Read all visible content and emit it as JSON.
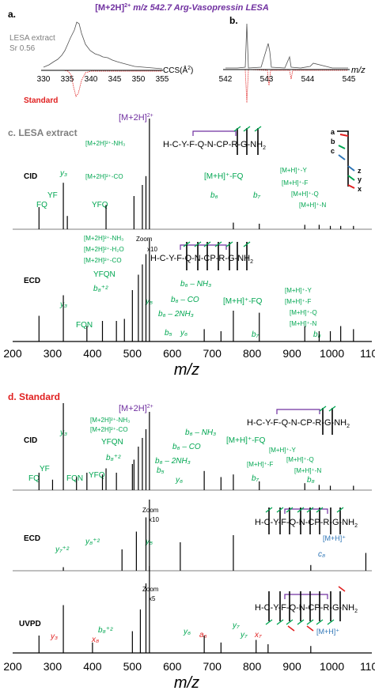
{
  "figure": {
    "title": "[M+2H]",
    "title_charge": "2+",
    "title_rest": " m/z 542.7 Arg-Vasopressin LESA"
  },
  "colors": {
    "purple": "#7030a0",
    "green": "#00a651",
    "red": "#e02020",
    "blue": "#2e75b6",
    "gray": "#808080",
    "black": "#000000"
  },
  "panel_a": {
    "label": "a.",
    "extract_label_1": "LESA extract",
    "extract_label_2": "Sr 0.56",
    "standard_label": "Standard",
    "axis_unit": "CCS(Å",
    "axis_unit_sup": "2",
    "axis_unit_close": ")",
    "ticks": [
      "330",
      "335",
      "340",
      "345",
      "350",
      "355"
    ]
  },
  "panel_b": {
    "label": "b.",
    "axis_unit": "m/z",
    "ticks": [
      "542",
      "543",
      "544",
      "545"
    ]
  },
  "panel_c": {
    "label": "c. LESA extract",
    "precursor": "[M+2H]",
    "precursor_charge": "2+",
    "cid_label": "CID",
    "ecd_label": "ECD",
    "zoom_1": "Zoom",
    "zoom_2": "x10",
    "sequence_top": "H-C-Y-F-Q-N-C",
    "seq_p": "P",
    "seq_r": "R",
    "seq_end": "-G-NH",
    "seq_sub": "2",
    "ion_legend": [
      "a",
      "b",
      "c",
      "z",
      "y",
      "x"
    ],
    "cid_ions": {
      "nh3": "[M+2H]²⁺-NH₃",
      "co": "[M+2H]²⁺-CO",
      "y3": "y₃",
      "fq": "FQ",
      "yf": "YF",
      "yfq": "YFQ",
      "mfq": "[M+H]⁺-FQ",
      "my": "[M+H]⁺-Y",
      "mf": "[M+H]⁺-F",
      "mq": "[M+H]⁺-Q",
      "mn": "[M+H]⁺-N",
      "b6": "b₆",
      "b7": "b₇"
    },
    "ecd_ions": {
      "nh3": "[M+2H]²⁺-NH₃",
      "h2o": "[M+2H]²⁺-H₂O",
      "co": "[M+2H]²⁺-CO",
      "yfqn": "YFQN",
      "b8": "b₈⁺²",
      "y3": "y₃",
      "fqn": "FQN",
      "y5": "y₅",
      "b6nh3": "b₆ – NH₃",
      "b6co": "b₆ – CO",
      "b62nh3": "b₆ – 2NH₃",
      "mfq": "[M+H]⁺-FQ",
      "my": "[M+H]⁺-Y",
      "mf": "[M+H]⁺-F",
      "mq": "[M+H]⁺-Q",
      "mn": "[M+H]⁺-N",
      "b5": "b₅",
      "y6": "y₆",
      "b7": "b₇",
      "b8b": "b₈"
    },
    "xlabel": "m/z"
  },
  "panel_d": {
    "label": "d. Standard",
    "precursor": "[M+2H]",
    "precursor_charge": "2+",
    "cid_label": "CID",
    "ecd_label": "ECD",
    "uvpd_label": "UVPD",
    "zoom": "Zoom",
    "zoom_x10": "x10",
    "zoom_x5": "x5",
    "sequence": "H-C-Y-F-Q-N-C",
    "seq_p": "P",
    "seq_r": "R",
    "seq_end": "G-NH",
    "seq_sub": "2",
    "cid_ions": {
      "y3": "y₃",
      "nh3": "[M+2H]²⁺-NH₃",
      "co": "[M+2H]²⁺-CO",
      "yfqn": "YFQN",
      "b8": "b₈⁺²",
      "fq": "FQ",
      "yf": "YF",
      "fqn": "FQN",
      "yfq": "YFQ",
      "b6nh3": "b₆ – NH₃",
      "b6co": "b₆ – CO",
      "b62nh3": "b₆ – 2NH₃",
      "b5": "b₅",
      "y6": "y₆",
      "mfq": "[M+H]⁺-FQ",
      "my": "[M+H]⁺-Y",
      "mf": "[M+H]⁺-F",
      "mq": "[M+H]⁺-Q",
      "mn": "[M+H]⁺-N",
      "b7": "b₇",
      "b8b": "b₈"
    },
    "ecd_ions": {
      "y7": "y₇⁺²",
      "y8": "y₈⁺²",
      "y5": "y₅",
      "c8": "c₈",
      "mh": "[M+H]⁺"
    },
    "uvpd_ions": {
      "y3": "y₃",
      "b8": "b₈⁺²",
      "x8": "x₈",
      "y6": "y₆",
      "a6": "a₆",
      "y7": "y₇",
      "y7b": "y₇",
      "x7": "x₇",
      "mh": "[M+H]⁺"
    },
    "xlabel": "m/z"
  },
  "chart_data": [
    {
      "type": "line",
      "panel": "a",
      "xlabel": "CCS(Å²)",
      "xlim": [
        330,
        355
      ],
      "xticks": [
        330,
        335,
        340,
        345,
        350,
        355
      ],
      "series": [
        {
          "name": "LESA extract",
          "x": [
            330,
            332,
            334,
            335,
            336,
            337,
            338,
            338.5,
            339,
            339.5,
            340,
            340.5,
            341,
            342,
            343,
            344,
            345,
            346,
            347,
            348,
            349,
            350,
            352,
            355
          ],
          "y": [
            0.15,
            0.18,
            0.22,
            0.27,
            0.35,
            0.45,
            0.6,
            0.68,
            0.72,
            0.85,
            1.0,
            0.92,
            0.78,
            0.62,
            0.45,
            0.42,
            0.38,
            0.36,
            0.3,
            0.28,
            0.24,
            0.2,
            0.1,
            0.05
          ]
        },
        {
          "name": "Standard",
          "x": [
            330,
            335,
            338,
            339,
            340,
            340.5,
            341,
            342,
            343,
            345,
            350,
            355
          ],
          "y": [
            0,
            0,
            -0.02,
            -0.1,
            -0.55,
            -0.95,
            -1.0,
            -0.6,
            -0.15,
            -0.04,
            0,
            0
          ]
        }
      ]
    },
    {
      "type": "line",
      "panel": "b",
      "xlabel": "m/z",
      "xlim": [
        542,
        545
      ],
      "xticks": [
        542,
        543,
        544,
        545
      ],
      "series": [
        {
          "name": "LESA extract",
          "x": [
            542.6,
            542.7,
            542.8,
            543.0,
            543.1,
            543.2,
            543.5,
            543.7,
            543.9,
            544.2
          ],
          "y": [
            0.05,
            1.0,
            0.1,
            0.02,
            0.35,
            0.6,
            0.05,
            0.25,
            0.08,
            0.05
          ]
        },
        {
          "name": "Standard",
          "x": [
            542.6,
            542.7,
            542.8,
            543.1,
            543.2,
            543.5,
            543.7,
            544.0
          ],
          "y": [
            -0.02,
            -1.0,
            -0.05,
            -0.2,
            -0.55,
            -0.05,
            -0.25,
            -0.03
          ]
        }
      ]
    },
    {
      "type": "bar",
      "panel": "c",
      "spectrum": "CID",
      "xlim": [
        200,
        1100
      ],
      "x": [
        266,
        327,
        337,
        434,
        504,
        525,
        534,
        542.7,
        753,
        818,
        932,
        968,
        996,
        1022,
        1054
      ],
      "y": [
        0.2,
        0.42,
        0.12,
        0.22,
        0.3,
        0.4,
        0.48,
        1.0,
        0.06,
        0.05,
        0.04,
        0.04,
        0.03,
        0.03,
        0.03
      ]
    },
    {
      "type": "bar",
      "panel": "c",
      "spectrum": "ECD",
      "xlim": [
        200,
        1100
      ],
      "x": [
        266,
        327,
        386,
        425,
        460,
        480,
        500,
        515,
        525,
        534,
        542.7,
        680,
        722,
        753,
        818,
        932,
        968,
        996,
        1022,
        1054
      ],
      "y": [
        0.25,
        0.45,
        0.15,
        0.2,
        0.2,
        0.22,
        0.5,
        0.65,
        0.75,
        0.85,
        1.0,
        0.12,
        0.1,
        0.3,
        0.28,
        0.15,
        0.1,
        0.1,
        0.15,
        0.12
      ]
    },
    {
      "type": "bar",
      "panel": "d",
      "spectrum": "CID",
      "xlim": [
        200,
        1100
      ],
      "x": [
        266,
        300,
        327,
        360,
        386,
        425,
        434,
        460,
        500,
        504,
        515,
        525,
        534,
        542.7,
        680,
        722,
        753,
        818,
        932,
        968,
        996,
        1054
      ],
      "y": [
        0.2,
        0.12,
        1.0,
        0.15,
        0.2,
        0.18,
        0.25,
        0.2,
        0.3,
        0.35,
        0.5,
        0.6,
        0.7,
        0.9,
        0.22,
        0.15,
        0.18,
        0.1,
        0.08,
        0.06,
        0.05,
        0.05
      ]
    },
    {
      "type": "bar",
      "panel": "d",
      "spectrum": "ECD",
      "xlim": [
        200,
        1100
      ],
      "x": [
        327,
        474,
        510,
        534,
        542.7,
        620,
        753,
        947,
        1085
      ],
      "y": [
        0.05,
        0.3,
        0.55,
        0.75,
        1.0,
        0.4,
        0.5,
        0.08,
        0.25
      ]
    },
    {
      "type": "bar",
      "panel": "d",
      "spectrum": "UVPD",
      "xlim": [
        200,
        1100
      ],
      "x": [
        266,
        327,
        400,
        500,
        520,
        534,
        542.7,
        680,
        722,
        810,
        840,
        947
      ],
      "y": [
        0.2,
        0.55,
        0.12,
        0.25,
        0.5,
        0.8,
        1.0,
        0.2,
        0.12,
        0.15,
        0.1,
        0.08
      ]
    }
  ]
}
